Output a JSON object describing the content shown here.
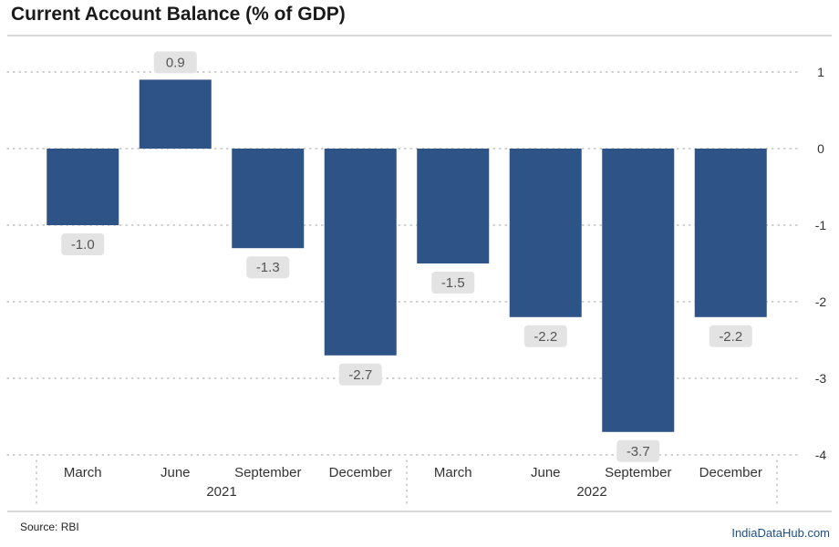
{
  "chart_data": {
    "type": "bar",
    "title": "Current Account Balance (% of GDP)",
    "categories": [
      "March",
      "June",
      "September",
      "December",
      "March",
      "June",
      "September",
      "December"
    ],
    "groups": [
      {
        "label": "2021",
        "count": 4
      },
      {
        "label": "2022",
        "count": 4
      }
    ],
    "values": [
      -1.0,
      0.9,
      -1.3,
      -2.7,
      -1.5,
      -2.2,
      -3.7,
      -2.2
    ],
    "data_labels": [
      "-1.0",
      "0.9",
      "-1.3",
      "-2.7",
      "-1.5",
      "-2.2",
      "-3.7",
      "-2.2"
    ],
    "yticks": [
      1,
      0,
      -1,
      -2,
      -3,
      -4
    ],
    "ylim": [
      -4,
      1
    ],
    "y_axis_side": "right",
    "grid": "dotted horizontal",
    "bar_color": "#2e5386",
    "label_box_color": "#e3e3e3"
  },
  "footer": {
    "source": "Source: RBI",
    "credit": "IndiaDataHub.com"
  }
}
